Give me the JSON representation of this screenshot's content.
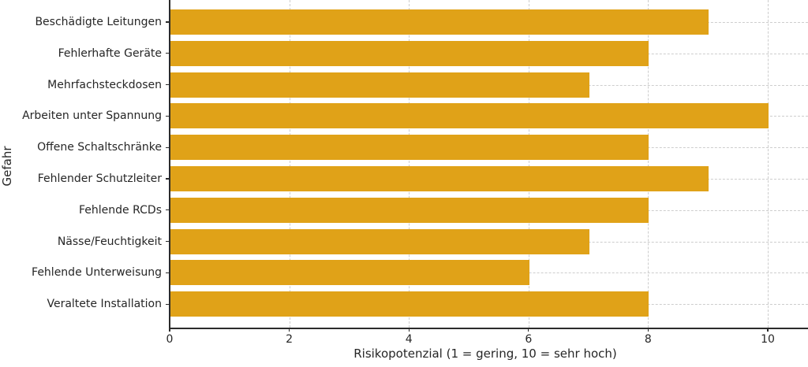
{
  "chart_data": {
    "type": "bar",
    "orientation": "horizontal",
    "title": "",
    "categories": [
      "Beschädigte Leitungen",
      "Fehlerhafte Geräte",
      "Mehrfachsteckdosen",
      "Arbeiten unter Spannung",
      "Offene Schaltschränke",
      "Fehlender Schutzleiter",
      "Fehlende RCDs",
      "Nässe/Feuchtigkeit",
      "Fehlende Unterweisung",
      "Veraltete Installation"
    ],
    "values": [
      9,
      8,
      7,
      10,
      8,
      9,
      8,
      7,
      6,
      8
    ],
    "xlabel": "Risikopotenzial (1 = gering, 10 = sehr hoch)",
    "ylabel": "Gefahr",
    "x_ticks": [
      0,
      2,
      4,
      6,
      8,
      10
    ],
    "xlim": [
      0,
      10.67
    ],
    "grid": "dashed both axes",
    "legend": "none",
    "colors": {
      "bar": "#e0a218",
      "grid": "#cdcdcd",
      "axis": "#2b2b2b",
      "text": "#262626",
      "background": "#ffffff"
    }
  }
}
